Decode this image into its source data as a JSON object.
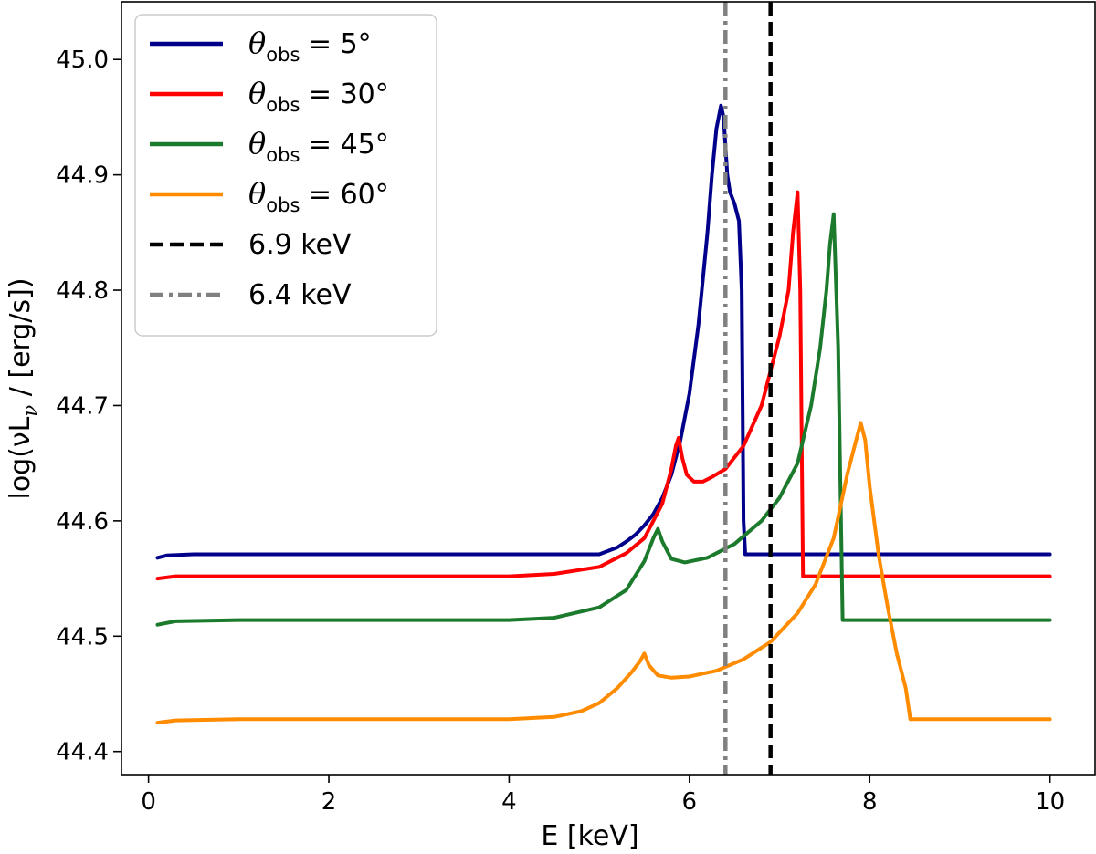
{
  "chart_data": {
    "type": "line",
    "xlabel": "E [keV]",
    "ylabel": "log(νL",
    "ylabel_sub": "ν",
    "ylabel_rest": " / [erg/s])",
    "xlim": [
      -0.3,
      10.5
    ],
    "ylim": [
      44.38,
      45.05
    ],
    "xticks": [
      0,
      2,
      4,
      6,
      8,
      10
    ],
    "xtick_labels": [
      "0",
      "2",
      "4",
      "6",
      "8",
      "10"
    ],
    "yticks": [
      44.4,
      44.5,
      44.6,
      44.7,
      44.8,
      44.9,
      45.0
    ],
    "ytick_labels": [
      "44.4",
      "44.5",
      "44.6",
      "44.7",
      "44.8",
      "44.9",
      "45.0"
    ],
    "legend_position": "upper-left",
    "series": [
      {
        "name": "θobs = 5°",
        "label_theta": "θ",
        "label_sub": "obs",
        "label_rest": " = 5°",
        "color": "#00008b",
        "style": "solid",
        "x": [
          0.1,
          0.2,
          0.5,
          1,
          2,
          3,
          4,
          5,
          5.1,
          5.2,
          5.3,
          5.4,
          5.5,
          5.6,
          5.7,
          5.8,
          5.9,
          6.0,
          6.1,
          6.2,
          6.25,
          6.3,
          6.35,
          6.38,
          6.42,
          6.45,
          6.5,
          6.55,
          6.58,
          6.6,
          6.62,
          6.7,
          7,
          8,
          9,
          10
        ],
        "y": [
          44.568,
          44.57,
          44.571,
          44.571,
          44.571,
          44.571,
          44.571,
          44.571,
          44.574,
          44.577,
          44.582,
          44.588,
          44.596,
          44.606,
          44.62,
          44.64,
          44.67,
          44.71,
          44.77,
          44.85,
          44.9,
          44.94,
          44.96,
          44.95,
          44.9,
          44.885,
          44.875,
          44.86,
          44.8,
          44.6,
          44.571,
          44.571,
          44.571,
          44.571,
          44.571,
          44.571
        ]
      },
      {
        "name": "θobs = 30°",
        "label_theta": "θ",
        "label_sub": "obs",
        "label_rest": " = 30°",
        "color": "#ff0000",
        "style": "solid",
        "x": [
          0.1,
          0.3,
          1,
          2,
          3,
          4,
          4.5,
          5.0,
          5.3,
          5.5,
          5.7,
          5.8,
          5.85,
          5.88,
          5.92,
          5.97,
          6.05,
          6.15,
          6.25,
          6.4,
          6.6,
          6.8,
          7.0,
          7.1,
          7.15,
          7.2,
          7.23,
          7.26,
          7.5,
          8,
          9,
          10
        ],
        "y": [
          44.55,
          44.552,
          44.552,
          44.552,
          44.552,
          44.552,
          44.554,
          44.56,
          44.572,
          44.585,
          44.615,
          44.645,
          44.665,
          44.672,
          44.655,
          44.64,
          44.634,
          44.634,
          44.638,
          44.645,
          44.665,
          44.7,
          44.76,
          44.8,
          44.85,
          44.885,
          44.8,
          44.552,
          44.552,
          44.552,
          44.552,
          44.552
        ]
      },
      {
        "name": "θobs = 45°",
        "label_theta": "θ",
        "label_sub": "obs",
        "label_rest": " = 45°",
        "color": "#1c7a2c",
        "style": "solid",
        "x": [
          0.1,
          0.3,
          1,
          2,
          3,
          4,
          4.5,
          5.0,
          5.3,
          5.5,
          5.6,
          5.65,
          5.7,
          5.8,
          5.95,
          6.2,
          6.5,
          6.8,
          7.0,
          7.2,
          7.35,
          7.45,
          7.52,
          7.56,
          7.6,
          7.65,
          7.7,
          7.75,
          8,
          9,
          10
        ],
        "y": [
          44.51,
          44.513,
          44.514,
          44.514,
          44.514,
          44.514,
          44.516,
          44.525,
          44.54,
          44.565,
          44.585,
          44.593,
          44.582,
          44.567,
          44.564,
          44.568,
          44.58,
          44.6,
          44.62,
          44.65,
          44.7,
          44.75,
          44.8,
          44.84,
          44.866,
          44.75,
          44.514,
          44.514,
          44.514,
          44.514,
          44.514
        ]
      },
      {
        "name": "θobs = 60°",
        "label_theta": "θ",
        "label_sub": "obs",
        "label_rest": " = 60°",
        "color": "#ff8c00",
        "style": "solid",
        "x": [
          0.1,
          0.3,
          1,
          2,
          3,
          4,
          4.5,
          4.8,
          5.0,
          5.2,
          5.35,
          5.45,
          5.5,
          5.55,
          5.65,
          5.8,
          6.0,
          6.3,
          6.6,
          6.9,
          7.2,
          7.4,
          7.6,
          7.75,
          7.85,
          7.9,
          7.95,
          8.0,
          8.1,
          8.2,
          8.3,
          8.4,
          8.45,
          8.5,
          9,
          10
        ],
        "y": [
          44.425,
          44.427,
          44.428,
          44.428,
          44.428,
          44.428,
          44.43,
          44.435,
          44.442,
          44.455,
          44.468,
          44.478,
          44.485,
          44.475,
          44.466,
          44.464,
          44.465,
          44.47,
          44.48,
          44.495,
          44.52,
          44.545,
          44.585,
          44.64,
          44.67,
          44.685,
          44.67,
          44.63,
          44.57,
          44.525,
          44.485,
          44.455,
          44.428,
          44.428,
          44.428,
          44.428
        ]
      },
      {
        "name": "6.9 keV",
        "label_text": " 6.9 keV",
        "color": "#000000",
        "style": "dashed",
        "type": "vline",
        "x_value": 6.9
      },
      {
        "name": "6.4 keV",
        "label_text": " 6.4 keV",
        "color": "#808080",
        "style": "dashdot",
        "type": "vline",
        "x_value": 6.4
      }
    ]
  }
}
